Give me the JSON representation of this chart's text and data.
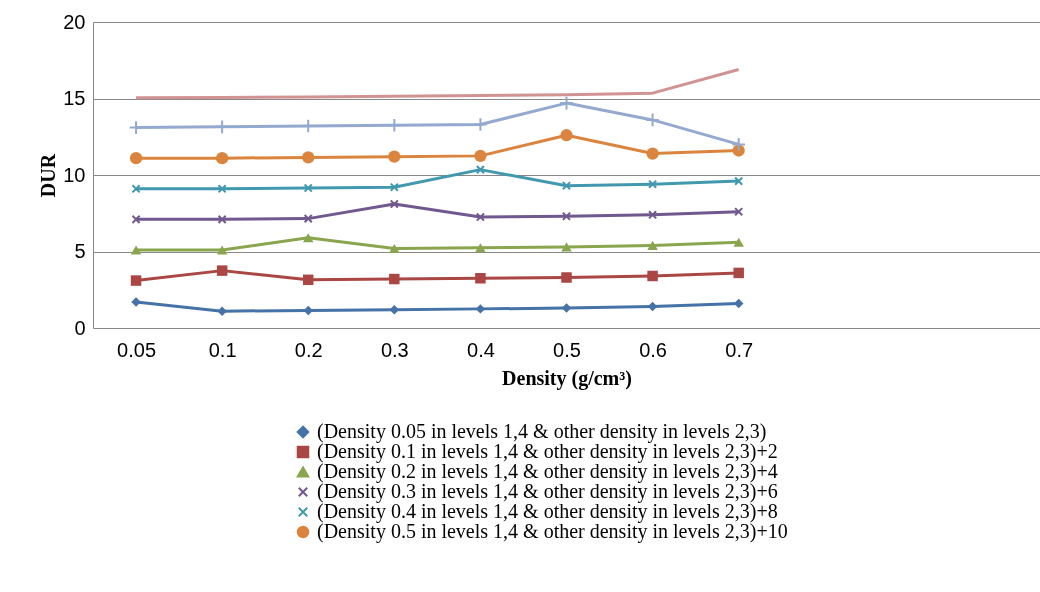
{
  "chart_data": {
    "type": "line",
    "ylabel": "DUR",
    "xlabel": "Density (g/cm³)",
    "categories": [
      "0.05",
      "0.1",
      "0.2",
      "0.3",
      "0.4",
      "0.5",
      "0.6",
      "0.7",
      null,
      null,
      null
    ],
    "ylim": [
      0,
      20
    ],
    "yticks": [
      0,
      5,
      10,
      15,
      20
    ],
    "grid": "y",
    "legend": "bottom",
    "series": [
      {
        "name": "(Density 0.05 in levels 1,4 & other density in levels 2,3)",
        "color": "#4572a7",
        "marker": "diamond",
        "values": [
          1.7,
          1.1,
          1.15,
          1.2,
          1.25,
          1.3,
          1.4,
          1.6,
          null,
          null,
          null
        ]
      },
      {
        "name": "(Density 0.1 in levels 1,4 & other density in levels 2,3)+2",
        "color": "#aa4643",
        "marker": "square",
        "values": [
          3.1,
          3.75,
          3.15,
          3.2,
          3.25,
          3.3,
          3.4,
          3.6,
          null,
          null,
          null
        ]
      },
      {
        "name": "(Density 0.2 in levels 1,4 & other density in levels 2,3)+4",
        "color": "#89a54e",
        "marker": "triangle",
        "values": [
          5.1,
          5.1,
          5.9,
          5.2,
          5.25,
          5.3,
          5.4,
          5.6,
          null,
          null,
          null
        ]
      },
      {
        "name": "(Density 0.3 in levels 1,4 & other density in levels 2,3)+6",
        "color": "#71588f",
        "marker": "cross",
        "values": [
          7.1,
          7.1,
          7.15,
          8.1,
          7.25,
          7.3,
          7.4,
          7.6,
          null,
          null,
          null
        ]
      },
      {
        "name": "(Density 0.4 in levels 1,4 & other density in levels 2,3)+8",
        "color": "#4198af",
        "marker": "cross",
        "values": [
          9.1,
          9.1,
          9.15,
          9.2,
          10.35,
          9.3,
          9.4,
          9.6,
          null,
          null,
          null
        ]
      },
      {
        "name": "(Density 0.5 in levels 1,4 & other density in levels 2,3)+10",
        "color": "#db843d",
        "marker": "circle",
        "values": [
          11.1,
          11.1,
          11.15,
          11.2,
          11.25,
          12.6,
          11.4,
          11.6,
          null,
          null,
          null
        ]
      },
      {
        "color": "#93a9cf",
        "marker": "plus",
        "values": [
          13.1,
          13.15,
          13.2,
          13.25,
          13.3,
          14.7,
          13.6,
          12.0,
          null,
          null,
          null
        ]
      },
      {
        "color": "#d19392",
        "marker": "none",
        "values": [
          15.05,
          15.07,
          15.1,
          15.15,
          15.2,
          15.25,
          15.35,
          16.9,
          null,
          null,
          null
        ]
      }
    ]
  }
}
